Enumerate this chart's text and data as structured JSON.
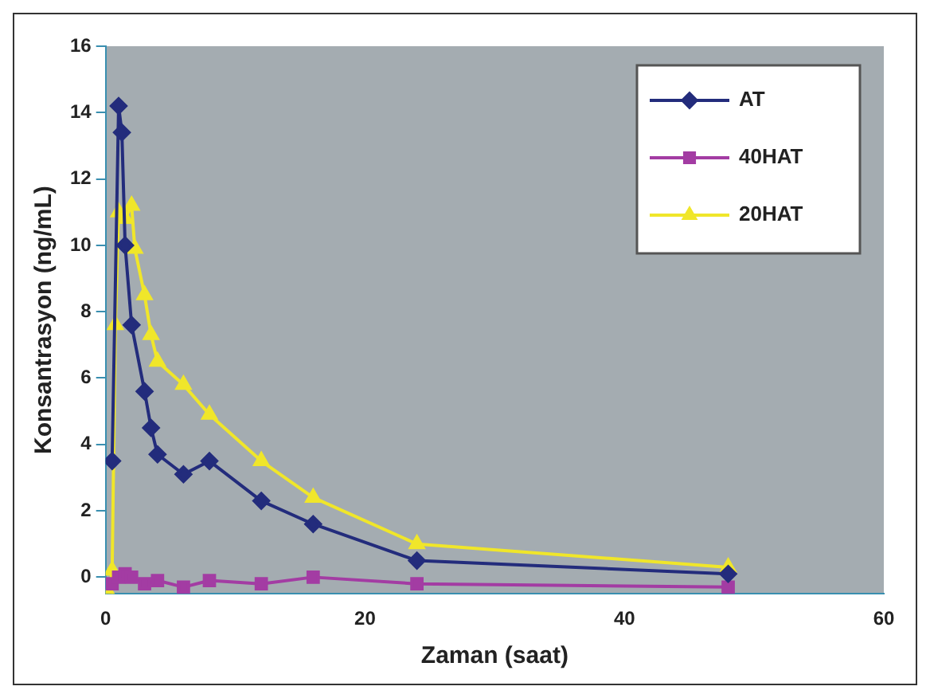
{
  "chart_data": {
    "type": "line",
    "xlabel": "Zaman (saat)",
    "ylabel": "Konsantrasyon (ng/mL)",
    "xlim": [
      0,
      60
    ],
    "xticks": [
      0,
      20,
      40,
      60
    ],
    "ylim": [
      -0.5,
      16
    ],
    "yticks": [
      0,
      2,
      4,
      6,
      8,
      10,
      12,
      14,
      16
    ],
    "grid": false,
    "legend": "top right",
    "line_style": "solid",
    "series": [
      {
        "name": "AT",
        "color": "#232c7c",
        "marker": "diamond",
        "x": [
          0.5,
          1,
          1.25,
          1.5,
          2,
          3,
          3.5,
          4,
          6,
          8,
          12,
          16,
          24,
          48
        ],
        "values": [
          3.5,
          14.2,
          13.4,
          10,
          7.6,
          5.6,
          4.5,
          3.7,
          3.1,
          3.5,
          2.3,
          1.6,
          0.5,
          0.1
        ]
      },
      {
        "name": "40HAT",
        "color": "#a33ca3",
        "marker": "square",
        "x": [
          0.5,
          1,
          1.5,
          2,
          3,
          4,
          6,
          8,
          12,
          16,
          24,
          48
        ],
        "values": [
          -0.2,
          0,
          0.1,
          0,
          -0.2,
          -0.1,
          -0.3,
          -0.1,
          -0.2,
          0,
          -0.2,
          -0.3
        ]
      },
      {
        "name": "20HAT",
        "color": "#f0e62a",
        "marker": "triangle",
        "x": [
          0.25,
          0.5,
          0.75,
          1,
          1.5,
          2,
          2.25,
          3,
          3.5,
          4,
          6,
          8,
          12,
          16,
          24,
          48
        ],
        "values": [
          -0.5,
          0.2,
          7.6,
          11,
          10.8,
          11.2,
          9.9,
          8.5,
          7.3,
          6.5,
          5.8,
          4.9,
          3.5,
          2.4,
          1.0,
          0.3
        ]
      }
    ]
  }
}
